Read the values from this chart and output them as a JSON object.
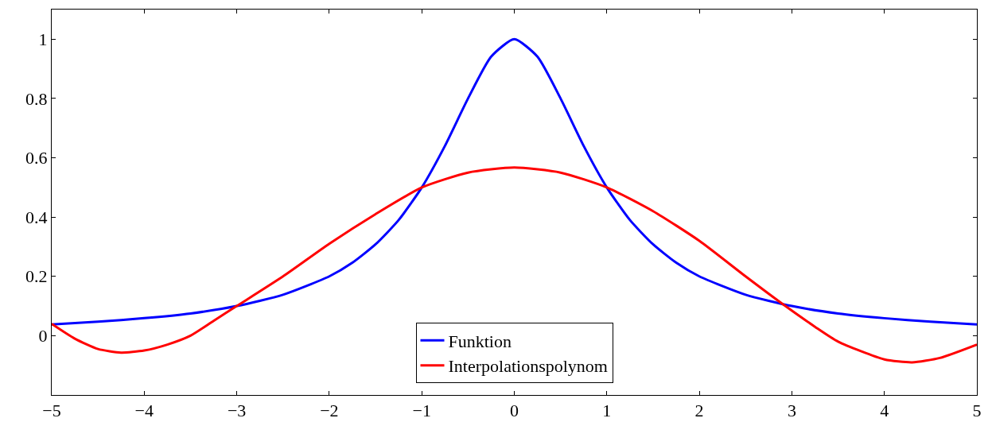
{
  "chart_data": {
    "type": "line",
    "xlim": [
      -5,
      5
    ],
    "ylim": [
      -0.2,
      1.1
    ],
    "xticks": [
      -5,
      -4,
      -3,
      -2,
      -1,
      0,
      1,
      2,
      3,
      4,
      5
    ],
    "yticks": [
      0,
      0.2,
      0.4,
      0.6,
      0.8,
      1
    ],
    "grid": false,
    "legend": "bottom",
    "marker": "none",
    "line_style": "solid",
    "series": [
      {
        "name": "Funktion",
        "color": "#0000ff",
        "x": [
          -5,
          -4.5,
          -4,
          -3.5,
          -3,
          -2.5,
          -2,
          -1.75,
          -1.5,
          -1.25,
          -1,
          -0.75,
          -0.5,
          -0.25,
          0,
          0.25,
          0.5,
          0.75,
          1,
          1.25,
          1.5,
          1.75,
          2,
          2.5,
          3,
          3.5,
          4,
          4.5,
          5
        ],
        "values": [
          0.038,
          0.047,
          0.059,
          0.075,
          0.1,
          0.138,
          0.2,
          0.246,
          0.308,
          0.39,
          0.5,
          0.64,
          0.8,
          0.941,
          1,
          0.941,
          0.8,
          0.64,
          0.5,
          0.39,
          0.308,
          0.246,
          0.2,
          0.138,
          0.1,
          0.075,
          0.059,
          0.047,
          0.038
        ]
      },
      {
        "name": "Interpolationspolynom",
        "color": "#ff0000",
        "x": [
          -5,
          -4.75,
          -4.5,
          -4.25,
          -4,
          -3.75,
          -3.5,
          -3.25,
          -3,
          -2.5,
          -2,
          -1.5,
          -1,
          -0.5,
          0,
          0.5,
          1,
          1.5,
          2,
          2.5,
          2.93,
          3.25,
          3.5,
          4,
          4.3,
          4.6,
          5
        ],
        "values": [
          0.04,
          -0.01,
          -0.045,
          -0.057,
          -0.05,
          -0.03,
          0.0,
          0.05,
          0.1,
          0.2,
          0.31,
          0.41,
          0.5,
          0.55,
          0.567,
          0.55,
          0.5,
          0.42,
          0.32,
          0.2,
          0.1,
          0.03,
          -0.02,
          -0.08,
          -0.09,
          -0.075,
          -0.03
        ]
      }
    ]
  }
}
